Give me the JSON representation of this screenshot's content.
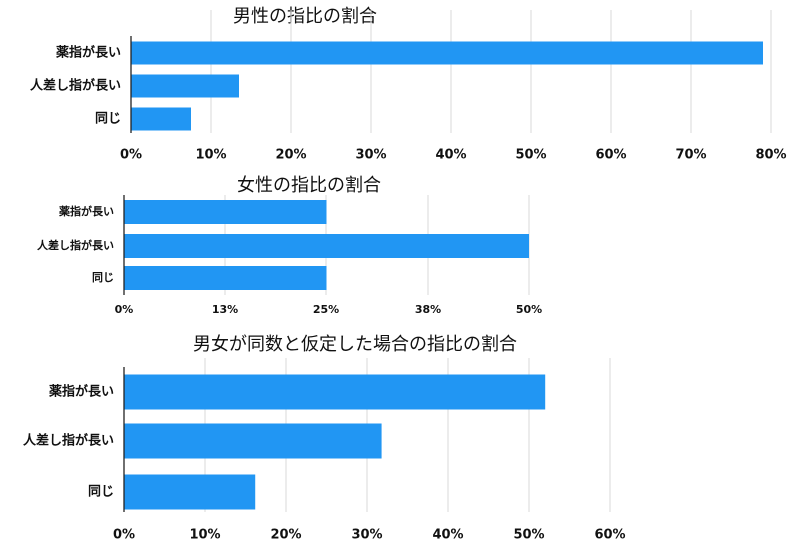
{
  "chart_data": [
    {
      "type": "bar",
      "orientation": "horizontal",
      "title": "男性の指比の割合",
      "categories": [
        "薬指が長い",
        "人差し指が長い",
        "同じ"
      ],
      "values": [
        0.79,
        0.135,
        0.075
      ],
      "ticks": [
        "0%",
        "10%",
        "20%",
        "30%",
        "40%",
        "50%",
        "60%",
        "70%",
        "80%"
      ],
      "xlim": [
        0,
        0.8
      ],
      "grid": true,
      "bar_color": "#2196f3"
    },
    {
      "type": "bar",
      "orientation": "horizontal",
      "title": "女性の指比の割合",
      "categories": [
        "薬指が長い",
        "人差し指が長い",
        "同じ"
      ],
      "values": [
        0.25,
        0.5,
        0.25
      ],
      "ticks": [
        "0%",
        "13%",
        "25%",
        "38%",
        "50%"
      ],
      "xlim": [
        0,
        0.5
      ],
      "grid": true,
      "bar_color": "#2196f3"
    },
    {
      "type": "bar",
      "orientation": "horizontal",
      "title": "男女が同数と仮定した場合の指比の割合",
      "categories": [
        "薬指が長い",
        "人差し指が長い",
        "同じ"
      ],
      "values": [
        0.52,
        0.318,
        0.162
      ],
      "ticks": [
        "0%",
        "10%",
        "20%",
        "30%",
        "40%",
        "50%",
        "60%"
      ],
      "xlim": [
        0,
        0.6
      ],
      "grid": true,
      "bar_color": "#2196f3"
    }
  ]
}
